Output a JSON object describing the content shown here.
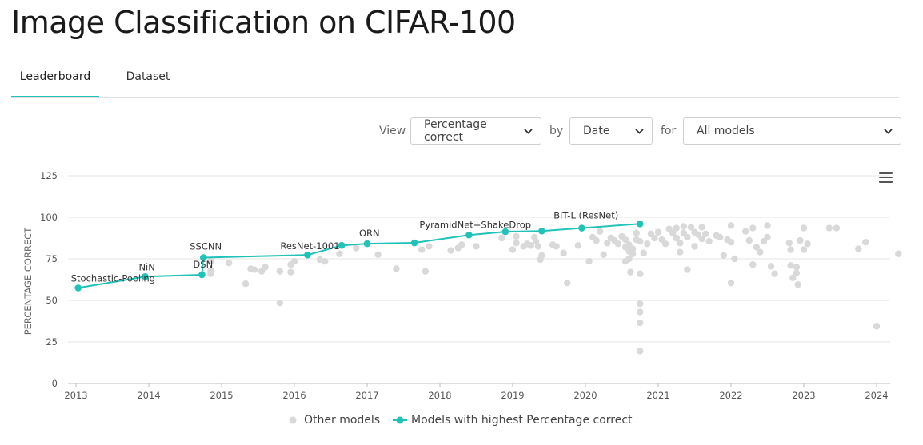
{
  "page": {
    "title": "Image Classification on CIFAR-100"
  },
  "tabs": [
    {
      "label": "Leaderboard",
      "active": true
    },
    {
      "label": "Dataset",
      "active": false
    }
  ],
  "controls": {
    "view_label": "View",
    "view_value": "Percentage correct",
    "by_label": "by",
    "by_value": "Date",
    "for_label": "for",
    "for_value": "All models"
  },
  "icons": {
    "menu": "hamburger-menu-icon",
    "select_caret": "chevron-down-icon"
  },
  "colors": {
    "accent": "#21c2b8",
    "other_points": "#d9d9d9",
    "grid": "#e6e6e6"
  },
  "chart_data": {
    "type": "scatter",
    "ylabel": "PERCENTAGE CORRECT",
    "xlabel": "",
    "ylim": [
      0,
      125
    ],
    "yticks": [
      0,
      25,
      50,
      75,
      100,
      125
    ],
    "xlim": [
      2013.0,
      2024.2
    ],
    "xticks": [
      "2013",
      "2014",
      "2015",
      "2016",
      "2017",
      "2018",
      "2019",
      "2020",
      "2021",
      "2022",
      "2023",
      "2024"
    ],
    "grid": true,
    "legend_position": "bottom",
    "legend": [
      {
        "label": "Other models",
        "marker": "dot",
        "color": "#d9d9d9"
      },
      {
        "label": "Models with highest Percentage correct",
        "marker": "line-dot",
        "color": "#21c2b8"
      }
    ],
    "sota_series": {
      "name": "Models with highest Percentage correct",
      "points": [
        {
          "x": 2013.03,
          "y": 57.5,
          "label": "Stochastic-Pooling"
        },
        {
          "x": 2013.95,
          "y": 64.3,
          "label": "NiN"
        },
        {
          "x": 2014.73,
          "y": 65.4,
          "label": "DSN"
        },
        {
          "x": 2014.75,
          "y": 75.7,
          "label": "SSCNN"
        },
        {
          "x": 2016.18,
          "y": 77.3,
          "label": "ResNet-1001"
        },
        {
          "x": 2016.65,
          "y": 83.1,
          "label": ""
        },
        {
          "x": 2017.0,
          "y": 84.1,
          "label": "ORN"
        },
        {
          "x": 2017.65,
          "y": 84.6,
          "label": ""
        },
        {
          "x": 2018.4,
          "y": 89.3,
          "label": "PyramidNet+ShakeDrop"
        },
        {
          "x": 2018.9,
          "y": 91.3,
          "label": ""
        },
        {
          "x": 2019.4,
          "y": 91.7,
          "label": ""
        },
        {
          "x": 2019.95,
          "y": 93.5,
          "label": ""
        },
        {
          "x": 2020.75,
          "y": 96.0,
          "label": "BiT-L (ResNet)"
        }
      ]
    },
    "other_series": {
      "name": "Other models",
      "points": [
        [
          2014.85,
          73.5
        ],
        [
          2014.85,
          68.0
        ],
        [
          2014.85,
          66.0
        ],
        [
          2015.1,
          72.5
        ],
        [
          2015.33,
          60.0
        ],
        [
          2015.4,
          69.0
        ],
        [
          2015.45,
          68.5
        ],
        [
          2015.55,
          67.5
        ],
        [
          2015.6,
          70.0
        ],
        [
          2015.8,
          67.5
        ],
        [
          2015.8,
          48.5
        ],
        [
          2015.95,
          71.5
        ],
        [
          2015.95,
          67.0
        ],
        [
          2016.0,
          73.5
        ],
        [
          2016.35,
          74.5
        ],
        [
          2016.42,
          73.5
        ],
        [
          2016.62,
          78.0
        ],
        [
          2016.85,
          81.5
        ],
        [
          2017.15,
          77.5
        ],
        [
          2017.4,
          69.0
        ],
        [
          2017.75,
          80.5
        ],
        [
          2017.8,
          67.5
        ],
        [
          2017.85,
          82.5
        ],
        [
          2018.15,
          80.0
        ],
        [
          2018.25,
          81.5
        ],
        [
          2018.3,
          83.5
        ],
        [
          2018.5,
          82.5
        ],
        [
          2018.85,
          87.5
        ],
        [
          2019.0,
          80.5
        ],
        [
          2019.05,
          84.5
        ],
        [
          2019.05,
          88.5
        ],
        [
          2019.15,
          82.5
        ],
        [
          2019.2,
          84.0
        ],
        [
          2019.25,
          83.0
        ],
        [
          2019.3,
          88.0
        ],
        [
          2019.32,
          85.5
        ],
        [
          2019.35,
          82.5
        ],
        [
          2019.38,
          74.5
        ],
        [
          2019.4,
          77.0
        ],
        [
          2019.55,
          83.5
        ],
        [
          2019.6,
          82.5
        ],
        [
          2019.7,
          78.5
        ],
        [
          2019.75,
          60.5
        ],
        [
          2019.9,
          83.0
        ],
        [
          2020.05,
          73.5
        ],
        [
          2020.1,
          88.0
        ],
        [
          2020.15,
          86.0
        ],
        [
          2020.2,
          91.5
        ],
        [
          2020.25,
          77.5
        ],
        [
          2020.3,
          84.5
        ],
        [
          2020.35,
          87.5
        ],
        [
          2020.4,
          86.0
        ],
        [
          2020.45,
          84.0
        ],
        [
          2020.5,
          88.5
        ],
        [
          2020.55,
          86.5
        ],
        [
          2020.55,
          82.0
        ],
        [
          2020.55,
          73.5
        ],
        [
          2020.6,
          79.5
        ],
        [
          2020.6,
          75.0
        ],
        [
          2020.6,
          83.5
        ],
        [
          2020.62,
          67.0
        ],
        [
          2020.65,
          81.0
        ],
        [
          2020.65,
          78.0
        ],
        [
          2020.7,
          90.5
        ],
        [
          2020.7,
          86.5
        ],
        [
          2020.75,
          85.5
        ],
        [
          2020.75,
          66.0
        ],
        [
          2020.75,
          48.0
        ],
        [
          2020.75,
          43.0
        ],
        [
          2020.75,
          36.5
        ],
        [
          2020.75,
          19.5
        ],
        [
          2020.8,
          78.5
        ],
        [
          2020.85,
          84.0
        ],
        [
          2020.9,
          90.0
        ],
        [
          2020.95,
          87.5
        ],
        [
          2021.0,
          91.0
        ],
        [
          2021.05,
          86.5
        ],
        [
          2021.1,
          84.0
        ],
        [
          2021.15,
          93.0
        ],
        [
          2021.2,
          90.5
        ],
        [
          2021.25,
          87.5
        ],
        [
          2021.25,
          93.5
        ],
        [
          2021.3,
          84.5
        ],
        [
          2021.3,
          79.0
        ],
        [
          2021.35,
          94.5
        ],
        [
          2021.35,
          90.5
        ],
        [
          2021.4,
          88.0
        ],
        [
          2021.4,
          68.5
        ],
        [
          2021.45,
          94.0
        ],
        [
          2021.5,
          91.0
        ],
        [
          2021.5,
          82.5
        ],
        [
          2021.55,
          89.5
        ],
        [
          2021.6,
          87.0
        ],
        [
          2021.6,
          94.0
        ],
        [
          2021.65,
          90.0
        ],
        [
          2021.7,
          85.5
        ],
        [
          2021.8,
          89.0
        ],
        [
          2021.85,
          88.0
        ],
        [
          2021.9,
          77.0
        ],
        [
          2021.95,
          86.5
        ],
        [
          2022.0,
          85.0
        ],
        [
          2022.0,
          95.0
        ],
        [
          2022.05,
          75.0
        ],
        [
          2022.0,
          60.5
        ],
        [
          2022.2,
          91.5
        ],
        [
          2022.25,
          86.0
        ],
        [
          2022.3,
          71.5
        ],
        [
          2022.3,
          93.5
        ],
        [
          2022.35,
          82.0
        ],
        [
          2022.4,
          79.0
        ],
        [
          2022.45,
          85.5
        ],
        [
          2022.5,
          88.0
        ],
        [
          2022.5,
          95.0
        ],
        [
          2022.55,
          70.5
        ],
        [
          2022.6,
          66.0
        ],
        [
          2022.8,
          84.5
        ],
        [
          2022.82,
          80.5
        ],
        [
          2022.82,
          71.0
        ],
        [
          2022.85,
          63.5
        ],
        [
          2022.9,
          70.0
        ],
        [
          2022.9,
          66.5
        ],
        [
          2022.92,
          59.5
        ],
        [
          2022.95,
          86.0
        ],
        [
          2023.0,
          93.5
        ],
        [
          2023.05,
          84.0
        ],
        [
          2023.0,
          80.5
        ],
        [
          2023.35,
          93.5
        ],
        [
          2023.45,
          93.5
        ],
        [
          2023.75,
          81.0
        ],
        [
          2023.85,
          85.0
        ],
        [
          2024.0,
          34.5
        ],
        [
          2024.3,
          78.0
        ]
      ]
    }
  }
}
